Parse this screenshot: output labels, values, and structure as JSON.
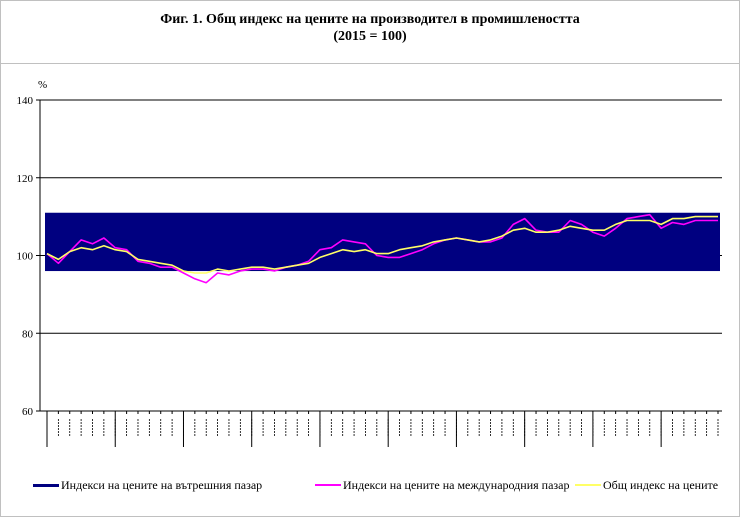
{
  "title": "Фиг. 1. Общ индекс на цените на производител в промишлеността",
  "subtitle": "(2015 = 100)",
  "colors": {
    "domestic": "#000080",
    "international": "#ff00ff",
    "total": "#ffff66",
    "plot_bg": "#ffffff",
    "grid": "#000000"
  },
  "legend": {
    "domestic": "Индекси на цените на вътрешния пазар",
    "international": "Индекси на цените на международния пазар",
    "total": "Общ индекс на цените"
  },
  "chart_data": {
    "type": "line",
    "ylabel": "%",
    "ylim": [
      60,
      140
    ],
    "yticks": [
      60,
      80,
      100,
      120,
      140
    ],
    "grid": "horizontal",
    "legend_position": "bottom",
    "x_count": 60,
    "series": [
      {
        "name": "Индекси на цените на вътрешния пазар",
        "band": [
          96,
          111
        ],
        "values": [
          96,
          97,
          98,
          99,
          100,
          100,
          99,
          98,
          97,
          97,
          97,
          96,
          96,
          96,
          96,
          96,
          96,
          96,
          96,
          96,
          97,
          98,
          99,
          100,
          101,
          101,
          101,
          101,
          102,
          103,
          103,
          104,
          104,
          104,
          105,
          105,
          106,
          106,
          106,
          106,
          107,
          107,
          107,
          107,
          108,
          108,
          108,
          109,
          109,
          109,
          110,
          110,
          110,
          110,
          111,
          111,
          111,
          111,
          111,
          111
        ]
      },
      {
        "name": "Индекси на цените на международния пазар",
        "values": [
          100.5,
          98,
          101,
          104,
          103,
          104.5,
          102,
          101.5,
          98.5,
          98,
          97,
          97,
          95.5,
          94,
          93,
          95.5,
          95,
          96,
          96.5,
          96.5,
          96,
          97,
          97.5,
          98.5,
          101.5,
          102,
          104,
          103.5,
          103,
          100,
          99.5,
          99.5,
          100.5,
          101.5,
          103,
          104,
          104.5,
          104,
          103.5,
          103.5,
          104.5,
          108,
          109.5,
          106.5,
          106,
          106,
          109,
          108,
          106,
          105,
          107,
          109.5,
          110,
          110.5,
          107,
          108.5,
          108,
          109,
          109,
          109
        ]
      },
      {
        "name": "Общ индекс на цените",
        "values": [
          100.5,
          99,
          101,
          102,
          101.5,
          102.5,
          101.5,
          101,
          99,
          98.5,
          98,
          97.5,
          96,
          95.5,
          95.5,
          96.5,
          96,
          96.5,
          97,
          97,
          96.5,
          97,
          97.5,
          98,
          99.5,
          100.5,
          101.5,
          101,
          101.5,
          100.5,
          100.5,
          101.5,
          102,
          102.5,
          103.5,
          104,
          104.5,
          104,
          103.5,
          104,
          105,
          106.5,
          107,
          106,
          106,
          106.5,
          107.5,
          107,
          106.5,
          106.5,
          108,
          109,
          109,
          109,
          108,
          109.5,
          109.5,
          110,
          110,
          110
        ]
      }
    ]
  }
}
